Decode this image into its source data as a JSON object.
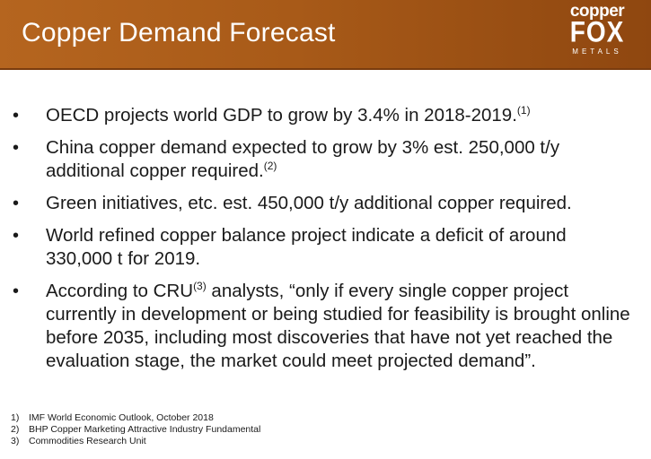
{
  "header": {
    "title": "Copper Demand Forecast",
    "logo": {
      "top": "copper",
      "main": "FOX",
      "sub": "METALS"
    }
  },
  "bullets": [
    {
      "text": "OECD projects world GDP to grow by 3.4% in 2018-2019.",
      "sup": "(1)"
    },
    {
      "text": "China copper demand expected to grow by 3% est. 250,000 t/y additional copper required.",
      "sup": "(2)"
    },
    {
      "text": "Green initiatives, etc. est. 450,000 t/y additional copper required."
    },
    {
      "text": "World refined copper balance project indicate a deficit of around 330,000 t  for 2019."
    },
    {
      "text_before": "According to CRU",
      "sup": "(3)",
      "text_after": " analysts, “only if every single copper project currently in development or being studied for feasibility is brought online before 2035, including most discoveries that have not yet reached the evaluation stage, the market could meet projected demand”."
    }
  ],
  "bullet_symbol": "•",
  "footnotes": [
    {
      "num": "1)",
      "text": "IMF World Economic Outlook, October 2018"
    },
    {
      "num": "2)",
      "text": "BHP Copper Marketing Attractive Industry Fundamental"
    },
    {
      "num": "3)",
      "text": "Commodities Research Unit"
    }
  ],
  "colors": {
    "header": "#a85a18",
    "text": "#1a1a1a",
    "title": "#ffffff"
  }
}
